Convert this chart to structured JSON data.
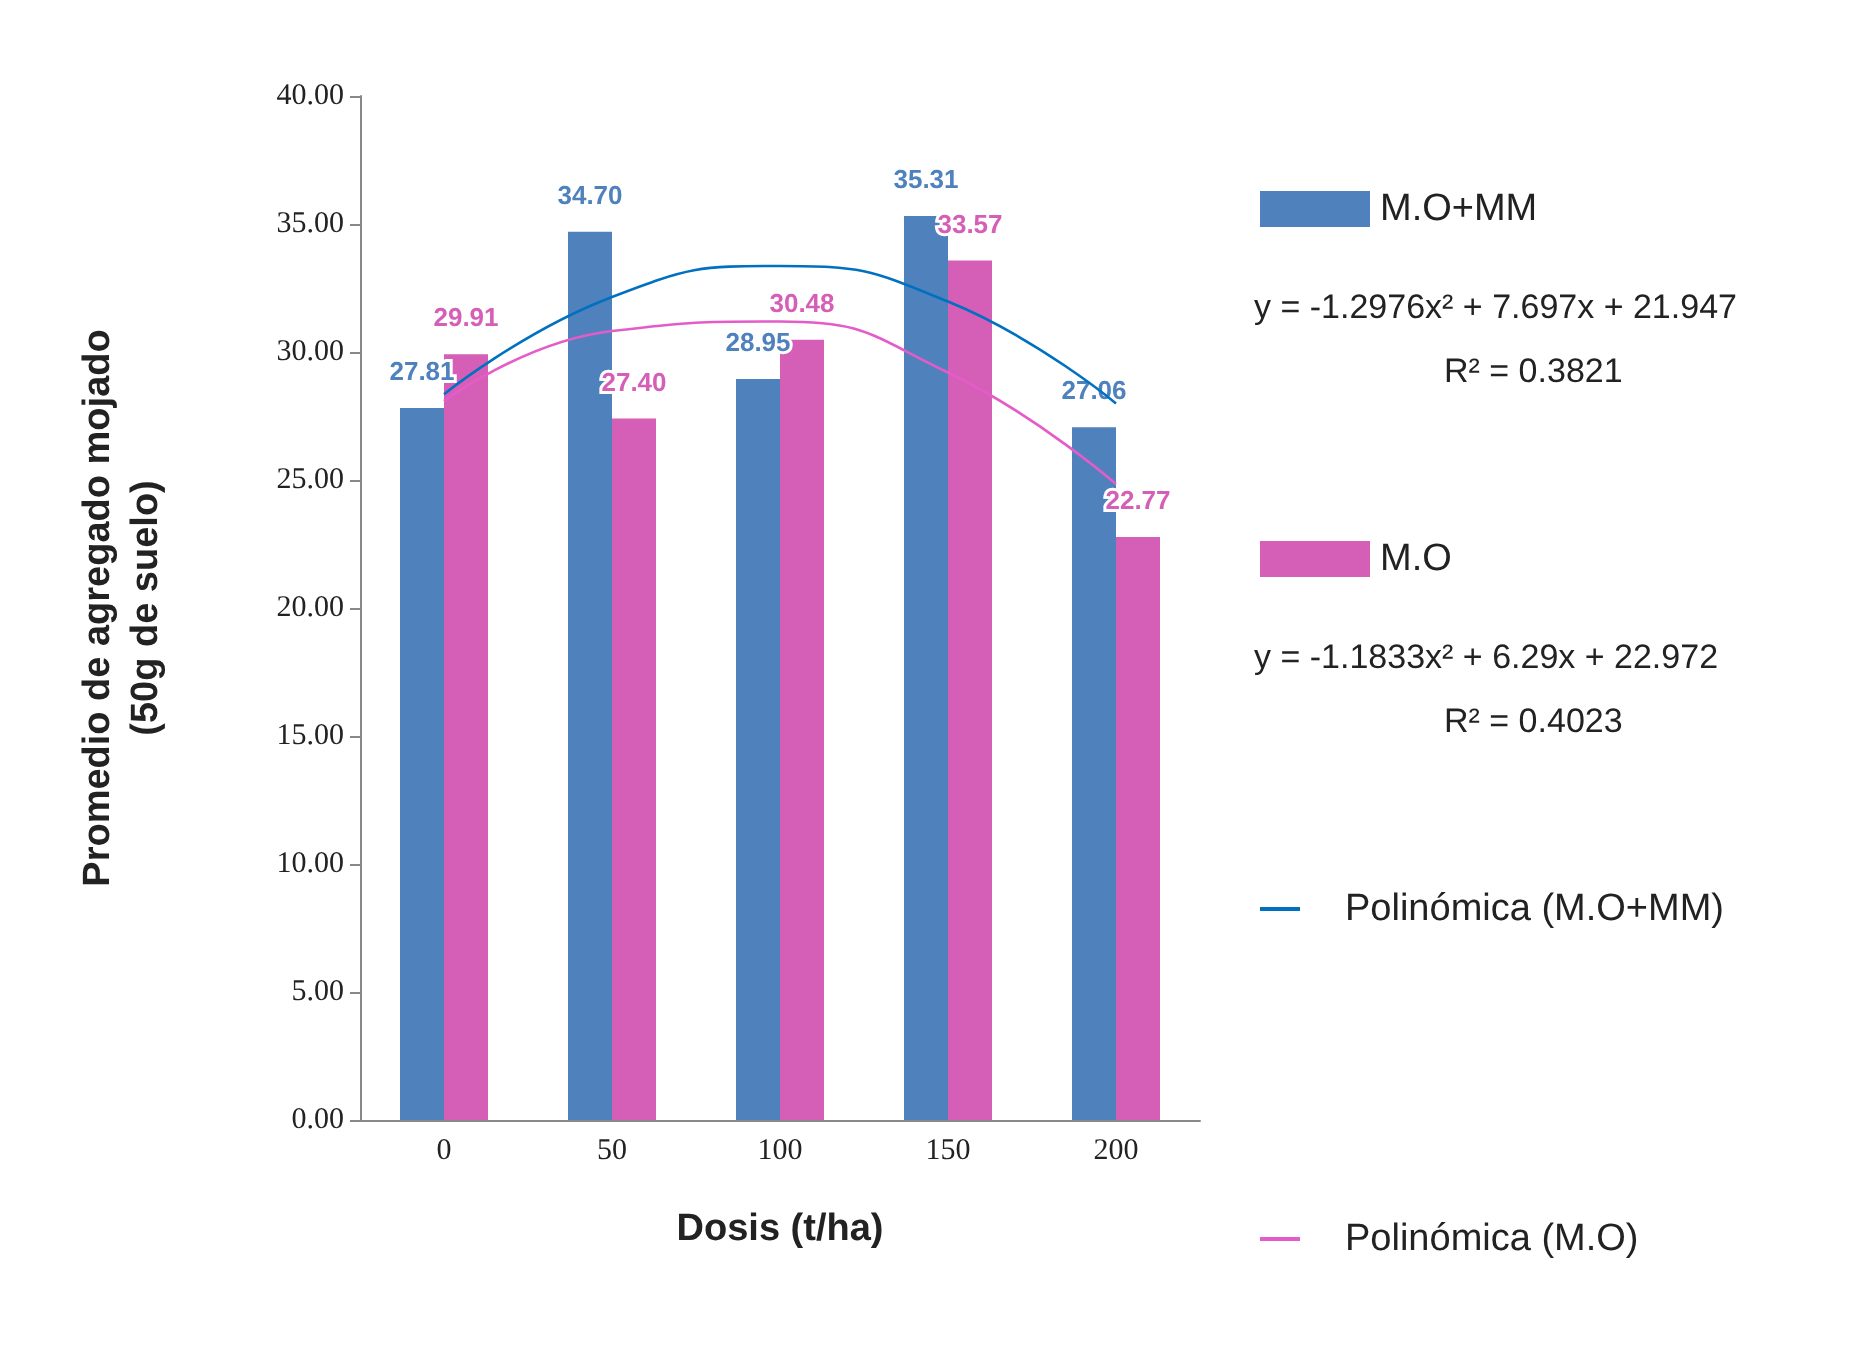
{
  "chart_data": {
    "type": "bar",
    "xlabel": "Dosis (t/ha)",
    "ylabel": "Promedio de agregado mojado\n(50g de suelo)",
    "categories": [
      "0",
      "50",
      "100",
      "150",
      "200"
    ],
    "series": [
      {
        "name": "M.O+MM",
        "color": "#4f81bd",
        "values": [
          27.81,
          34.7,
          28.95,
          35.31,
          27.06
        ],
        "value_labels": [
          "27.81",
          "34.70",
          "28.95",
          "35.31",
          "27.06"
        ]
      },
      {
        "name": "M.O",
        "color": "#d55fb7",
        "values": [
          29.91,
          27.4,
          30.48,
          33.57,
          22.77
        ],
        "value_labels": [
          "29.91",
          "27.40",
          "30.48",
          "33.57",
          "22.77"
        ]
      },
      {
        "name": "Polinómica (M.O+MM)",
        "type": "line",
        "color": "#0070c0",
        "x": [
          "0",
          "50",
          "100",
          "150",
          "200"
        ],
        "values": [
          28.35,
          32.15,
          33.36,
          31.97,
          27.99
        ]
      },
      {
        "name": "Polinómica (M.O)",
        "type": "line",
        "color": "#e45cc8",
        "x": [
          "0",
          "50",
          "100",
          "150",
          "200"
        ],
        "values": [
          28.08,
          30.82,
          31.19,
          29.2,
          24.84
        ]
      }
    ],
    "annotations": [
      "y = -1.2976x² + 7.697x + 21.947",
      "R² = 0.3821",
      "y = -1.1833x² + 6.29x + 22.972",
      "R² = 0.4023"
    ],
    "ylim": [
      0,
      40
    ],
    "yticks": [
      {
        "value": 0,
        "label": "0.00"
      },
      {
        "value": 5,
        "label": "5.00"
      },
      {
        "value": 10,
        "label": "10.00"
      },
      {
        "value": 15,
        "label": "15.00"
      },
      {
        "value": 20,
        "label": "20.00"
      },
      {
        "value": 25,
        "label": "25.00"
      },
      {
        "value": 30,
        "label": "30.00"
      },
      {
        "value": 35,
        "label": "35.00"
      },
      {
        "value": 40,
        "label": "40.00"
      }
    ],
    "grid": false,
    "legend": "right",
    "line_style": "solid",
    "marker": "none"
  }
}
